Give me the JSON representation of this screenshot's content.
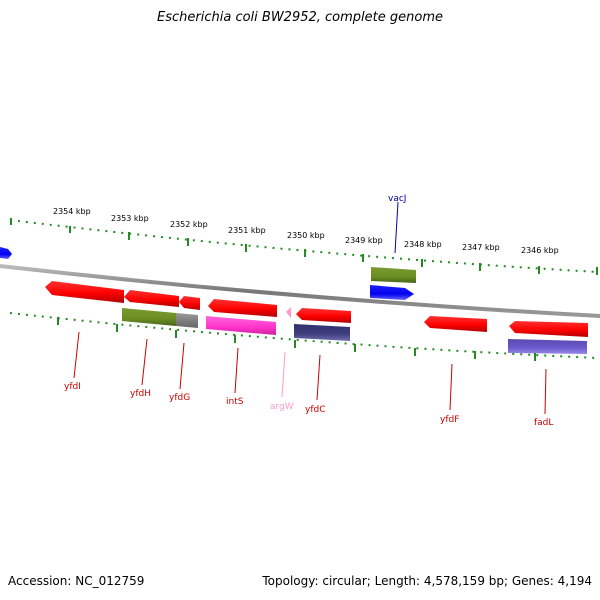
{
  "title": "Escherichia coli BW2952, complete genome",
  "footer": {
    "accession": "Accession: NC_012759",
    "info": "Topology: circular; Length: 4,578,159 bp; Genes: 4,194"
  },
  "colors": {
    "cds": "#ff0000",
    "trna": "#ff99cc",
    "tick": "#228b22",
    "backbone": "#888888",
    "olive": "#6b8e23",
    "blue": "#0000ff",
    "magenta": "#ff33cc",
    "slate": "#404080",
    "periwinkle": "#6a5acd",
    "gray": "#808080"
  },
  "scale": {
    "labels": [
      "2354 kbp",
      "2353 kbp",
      "2352 kbp",
      "2351 kbp",
      "2350 kbp",
      "2349 kbp",
      "2348 kbp",
      "2347 kbp",
      "2346 kbp"
    ]
  },
  "genes": [
    {
      "name": "yfdI",
      "color": "#cc0000"
    },
    {
      "name": "yfdH",
      "color": "#cc0000"
    },
    {
      "name": "yfdG",
      "color": "#cc0000"
    },
    {
      "name": "intS",
      "color": "#cc0000"
    },
    {
      "name": "argW",
      "color": "#ff99cc"
    },
    {
      "name": "yfdC",
      "color": "#cc0000"
    },
    {
      "name": "yfdF",
      "color": "#cc0000"
    },
    {
      "name": "fadL",
      "color": "#cc0000"
    },
    {
      "name": "vacJ",
      "color": "#0000aa"
    }
  ]
}
